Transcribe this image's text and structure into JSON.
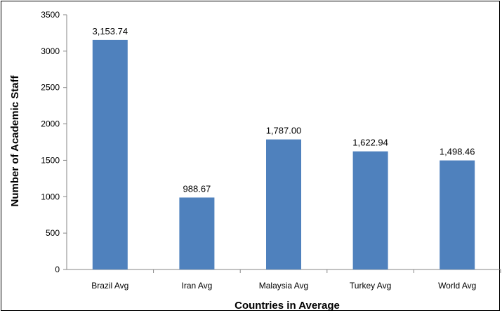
{
  "chart_data": {
    "type": "bar",
    "title": "",
    "xlabel": "Countries in Average",
    "ylabel": "Number of Academic Staff",
    "categories": [
      "Brazil Avg",
      "Iran Avg",
      "Malaysia Avg",
      "Turkey Avg",
      "World Avg"
    ],
    "values": [
      3153.74,
      988.67,
      1787.0,
      1622.94,
      1498.46
    ],
    "data_labels": [
      "3,153.74",
      "988.67",
      "1,787.00",
      "1,622.94",
      "1,498.46"
    ],
    "ylim": [
      0,
      3500
    ],
    "yticks": [
      0,
      500,
      1000,
      1500,
      2000,
      2500,
      3000,
      3500
    ],
    "grid": false,
    "legend": "none",
    "bar_color": "#4f81bd"
  }
}
